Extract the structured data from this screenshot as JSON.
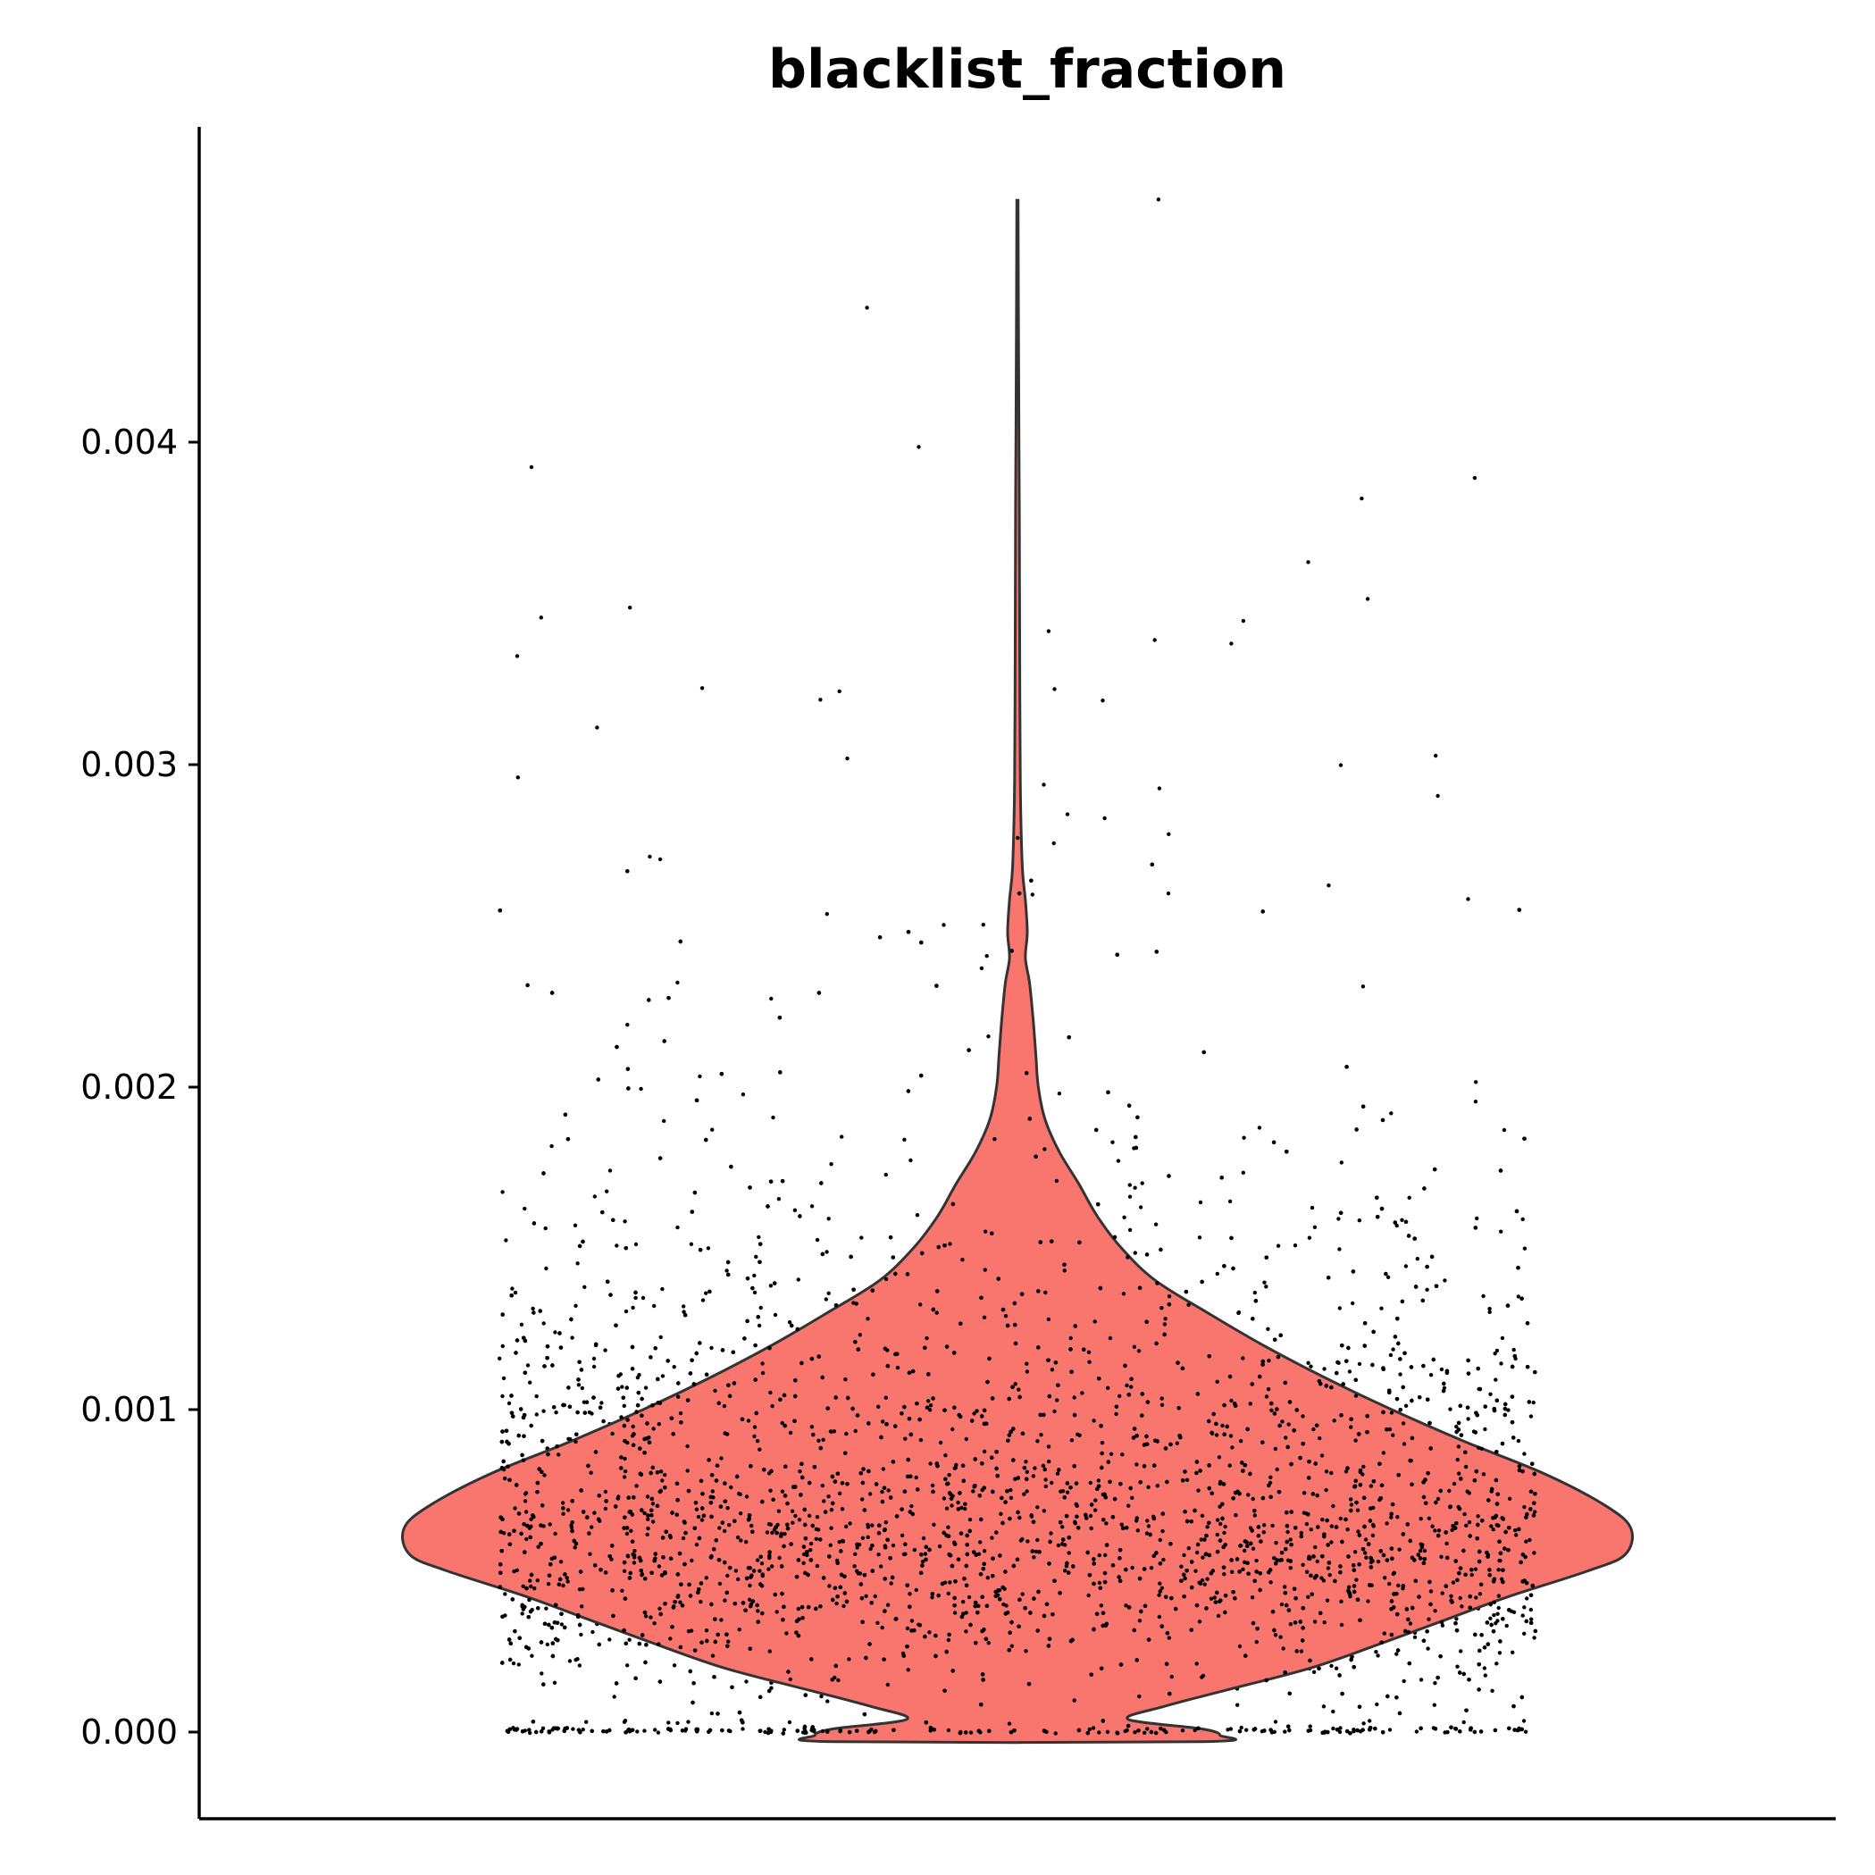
{
  "chart_data": {
    "type": "violin",
    "title": "blacklist_fraction",
    "xlabel": "",
    "ylabel": "",
    "ylim": [
      -0.00027,
      0.00505
    ],
    "yticks": [
      0.0,
      0.001,
      0.002,
      0.003,
      0.004
    ],
    "ytick_labels": [
      "0.000",
      "0.001",
      "0.002",
      "0.003",
      "0.004"
    ],
    "grid": false,
    "legend": "none",
    "fill_color": "#f8766d",
    "outline_color": "#333333",
    "point_color": "#000000",
    "violin": {
      "min": -3e-05,
      "max": 0.00475,
      "profile": [
        [
          0.00475,
          0.001
        ],
        [
          0.0042,
          0.002
        ],
        [
          0.0038,
          0.003
        ],
        [
          0.0032,
          0.004
        ],
        [
          0.0029,
          0.005
        ],
        [
          0.00268,
          0.008
        ],
        [
          0.00258,
          0.013
        ],
        [
          0.00248,
          0.016
        ],
        [
          0.0024,
          0.013
        ],
        [
          0.00232,
          0.02
        ],
        [
          0.0022,
          0.026
        ],
        [
          0.0021,
          0.03
        ],
        [
          0.002,
          0.034
        ],
        [
          0.0019,
          0.045
        ],
        [
          0.0018,
          0.068
        ],
        [
          0.0017,
          0.1
        ],
        [
          0.0016,
          0.13
        ],
        [
          0.0015,
          0.17
        ],
        [
          0.0014,
          0.225
        ],
        [
          0.0013,
          0.31
        ],
        [
          0.0012,
          0.4
        ],
        [
          0.0011,
          0.5
        ],
        [
          0.001,
          0.61
        ],
        [
          0.0009,
          0.73
        ],
        [
          0.0008,
          0.86
        ],
        [
          0.0007,
          0.96
        ],
        [
          0.00063,
          1.0
        ],
        [
          0.00055,
          0.99
        ],
        [
          0.0005,
          0.93
        ],
        [
          0.00042,
          0.8
        ],
        [
          0.00035,
          0.7
        ],
        [
          0.00028,
          0.6
        ],
        [
          0.0002,
          0.48
        ],
        [
          0.00013,
          0.34
        ],
        [
          8e-05,
          0.24
        ],
        [
          4e-05,
          0.18
        ],
        [
          1e-05,
          0.3
        ],
        [
          -1e-05,
          0.33
        ],
        [
          -3e-05,
          0.3
        ]
      ]
    },
    "points": {
      "count": 9000,
      "distribution": "jittered single-cell values, concentrated between 0.0002 and 0.0009 with a cluster at 0 and sparse outliers up to about 0.0047",
      "outliers": [
        0.00475,
        0.00442,
        0.00398,
        0.00392,
        0.00389,
        0.00383,
        0.00363,
        0.00351,
        0.00349,
        0.00346,
        0.00345,
        0.00341,
        0.00339,
        0.00338,
        0.00334,
        0.00324,
        0.00324,
        0.00323,
        0.0032,
        0.0032,
        0.00311,
        0.00303,
        0.00302,
        0.003,
        0.00296,
        0.00294,
        0.00293,
        0.0029,
        0.00285,
        0.00283,
        0.00278,
        0.00277,
        0.00276,
        0.00272,
        0.00271
      ]
    }
  }
}
